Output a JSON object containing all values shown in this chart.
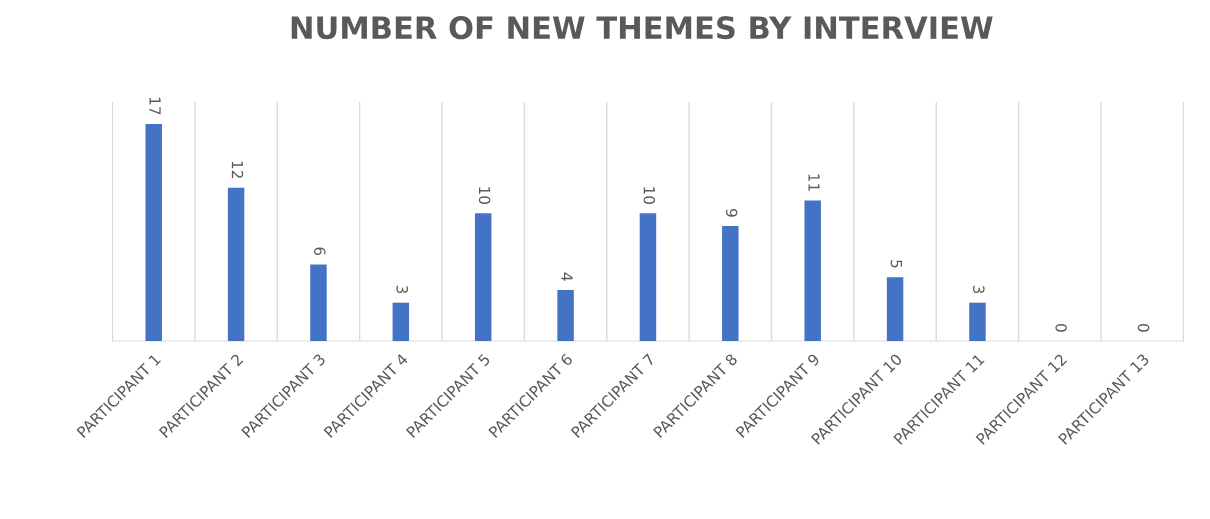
{
  "chart_data": {
    "type": "bar",
    "title": "NUMBER OF NEW THEMES BY INTERVIEW",
    "categories": [
      "PARTICIPANT 1",
      "PARTICIPANT 2",
      "PARTICIPANT 3",
      "PARTICIPANT 4",
      "PARTICIPANT 5",
      "PARTICIPANT 6",
      "PARTICIPANT 7",
      "PARTICIPANT 8",
      "PARTICIPANT 9",
      "PARTICIPANT 10",
      "PARTICIPANT 11",
      "PARTICIPANT 12",
      "PARTICIPANT 13"
    ],
    "values": [
      17,
      12,
      6,
      3,
      10,
      4,
      10,
      9,
      11,
      5,
      3,
      0,
      0
    ],
    "color": "#4472c4",
    "data_labels": true,
    "grid": "x",
    "legend": false
  }
}
